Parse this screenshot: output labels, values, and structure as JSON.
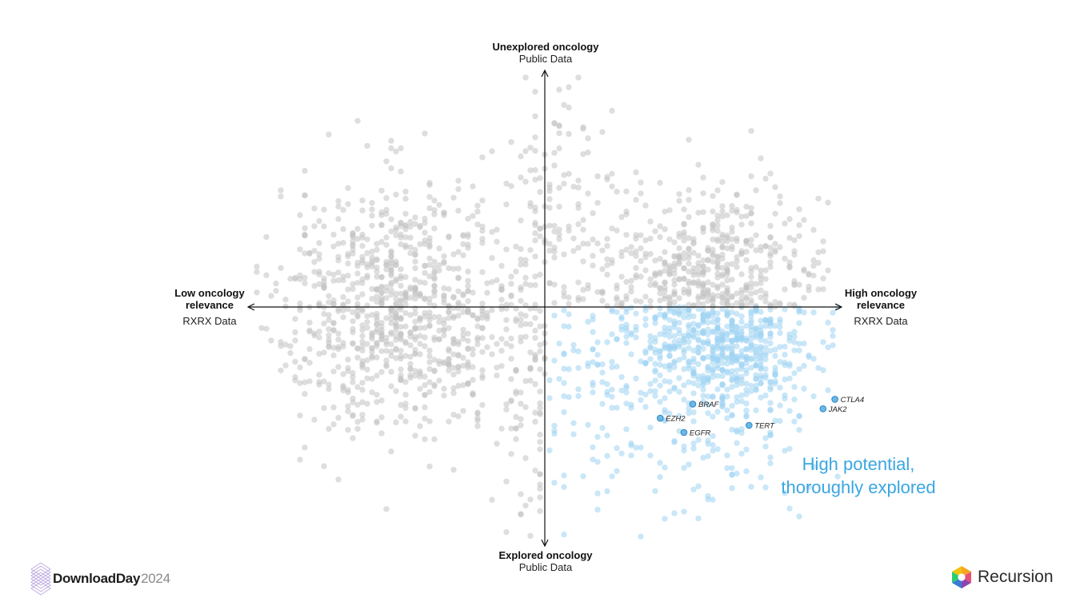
{
  "axes": {
    "top": {
      "title": "Unexplored oncology",
      "subtitle": "Public Data"
    },
    "bottom": {
      "title": "Explored oncology",
      "subtitle": "Public Data"
    },
    "left": {
      "title_line1": "Low oncology",
      "title_line2": "relevance",
      "subtitle": "RXRX Data"
    },
    "right": {
      "title_line1": "High oncology",
      "title_line2": "relevance",
      "subtitle": "RXRX Data"
    }
  },
  "callout": {
    "line1": "High potential,",
    "line2": "thoroughly explored"
  },
  "branding": {
    "event_name": "DownloadDay",
    "event_year": "2024",
    "company": "Recursion"
  },
  "colors": {
    "gray_point": "#c3c3c3",
    "blue_point": "#9fd3f3",
    "highlight_fill": "#6ab8e6",
    "highlight_stroke": "#2f86c4",
    "callout": "#3aa6e2",
    "axis": "#111111"
  },
  "chart_data": {
    "type": "scatter",
    "x_axis": {
      "low_label": "Low oncology relevance",
      "high_label": "High oncology relevance",
      "source": "RXRX Data"
    },
    "y_axis": {
      "low_label": "Explored oncology",
      "high_label": "Unexplored oncology",
      "source": "Public Data"
    },
    "grid": false,
    "series": [
      {
        "quadrant": "other",
        "color": "#c3c3c3",
        "approx_point_count": 2200
      },
      {
        "quadrant": "High oncology relevance, explored",
        "color": "#9fd3f3",
        "approx_point_count": 600
      }
    ],
    "highlighted_genes": [
      {
        "label": "CTLA4",
        "x": 0.98,
        "y": -0.39
      },
      {
        "label": "JAK2",
        "x": 0.94,
        "y": -0.43
      },
      {
        "label": "BRAF",
        "x": 0.5,
        "y": -0.41
      },
      {
        "label": "EZH2",
        "x": 0.39,
        "y": -0.47
      },
      {
        "label": "TERT",
        "x": 0.69,
        "y": -0.5
      },
      {
        "label": "EGFR",
        "x": 0.47,
        "y": -0.53
      }
    ]
  }
}
